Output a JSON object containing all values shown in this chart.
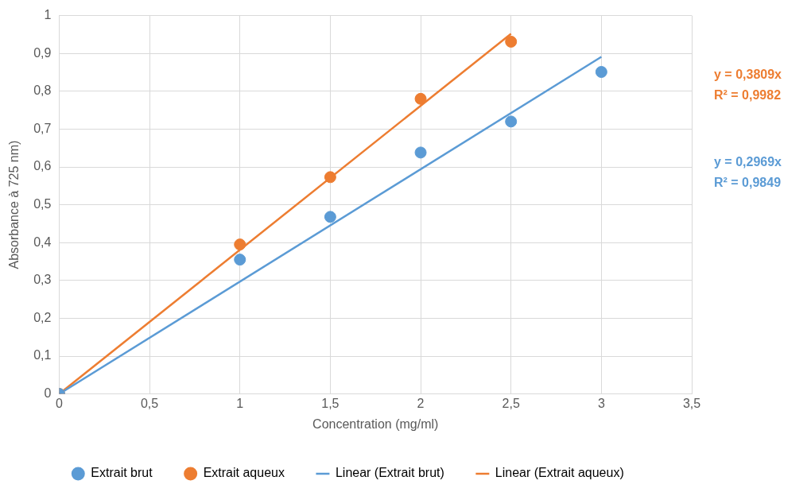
{
  "chart_data": {
    "type": "scatter",
    "xlabel": "Concentration (mg/ml)",
    "ylabel": "Absorbance à 725 nm)",
    "xlim": [
      0,
      3.5
    ],
    "xticks": [
      0,
      {
        "value": 0.5,
        "label": "0,5"
      },
      1,
      {
        "value": 1.5,
        "label": "1,5"
      },
      2,
      {
        "value": 2.5,
        "label": "2,5"
      },
      3,
      {
        "value": 3.5,
        "label": "3,5"
      }
    ],
    "ylim": [
      0,
      1
    ],
    "yticks": [
      0,
      {
        "value": 0.1,
        "label": "0,1"
      },
      {
        "value": 0.2,
        "label": "0,2"
      },
      {
        "value": 0.3,
        "label": "0,3"
      },
      {
        "value": 0.4,
        "label": "0,4"
      },
      {
        "value": 0.5,
        "label": "0,5"
      },
      {
        "value": 0.6,
        "label": "0,6"
      },
      {
        "value": 0.7,
        "label": "0,7"
      },
      {
        "value": 0.8,
        "label": "0,8"
      },
      {
        "value": 0.9,
        "label": "0,9"
      },
      1
    ],
    "grid": true,
    "legend": "bottom",
    "series": [
      {
        "name": "Extrait brut",
        "color": "#5b9bd5",
        "marker": "circle",
        "x": [
          0,
          1,
          1.5,
          2,
          2.5,
          3
        ],
        "values": [
          0,
          0.355,
          0.468,
          0.638,
          0.72,
          0.851
        ]
      },
      {
        "name": "Extrait aqueux",
        "color": "#ed7d31",
        "marker": "circle",
        "x": [
          0,
          1,
          1.5,
          2,
          2.5
        ],
        "values": [
          0,
          0.395,
          0.573,
          0.78,
          0.931
        ]
      },
      {
        "name": "Linear (Extrait brut)",
        "type": "line",
        "marker": "none",
        "color": "#5b9bd5",
        "x": [
          0,
          3
        ],
        "values": [
          0,
          0.891
        ]
      },
      {
        "name": "Linear (Extrait aqueux)",
        "type": "line",
        "marker": "none",
        "color": "#ed7d31",
        "x": [
          0,
          2.5
        ],
        "values": [
          0,
          0.952
        ]
      }
    ],
    "annotations": [
      "y = 0,3809x\nR² = 0,9982",
      "y = 0,2969x\nR² = 0,9849"
    ]
  }
}
